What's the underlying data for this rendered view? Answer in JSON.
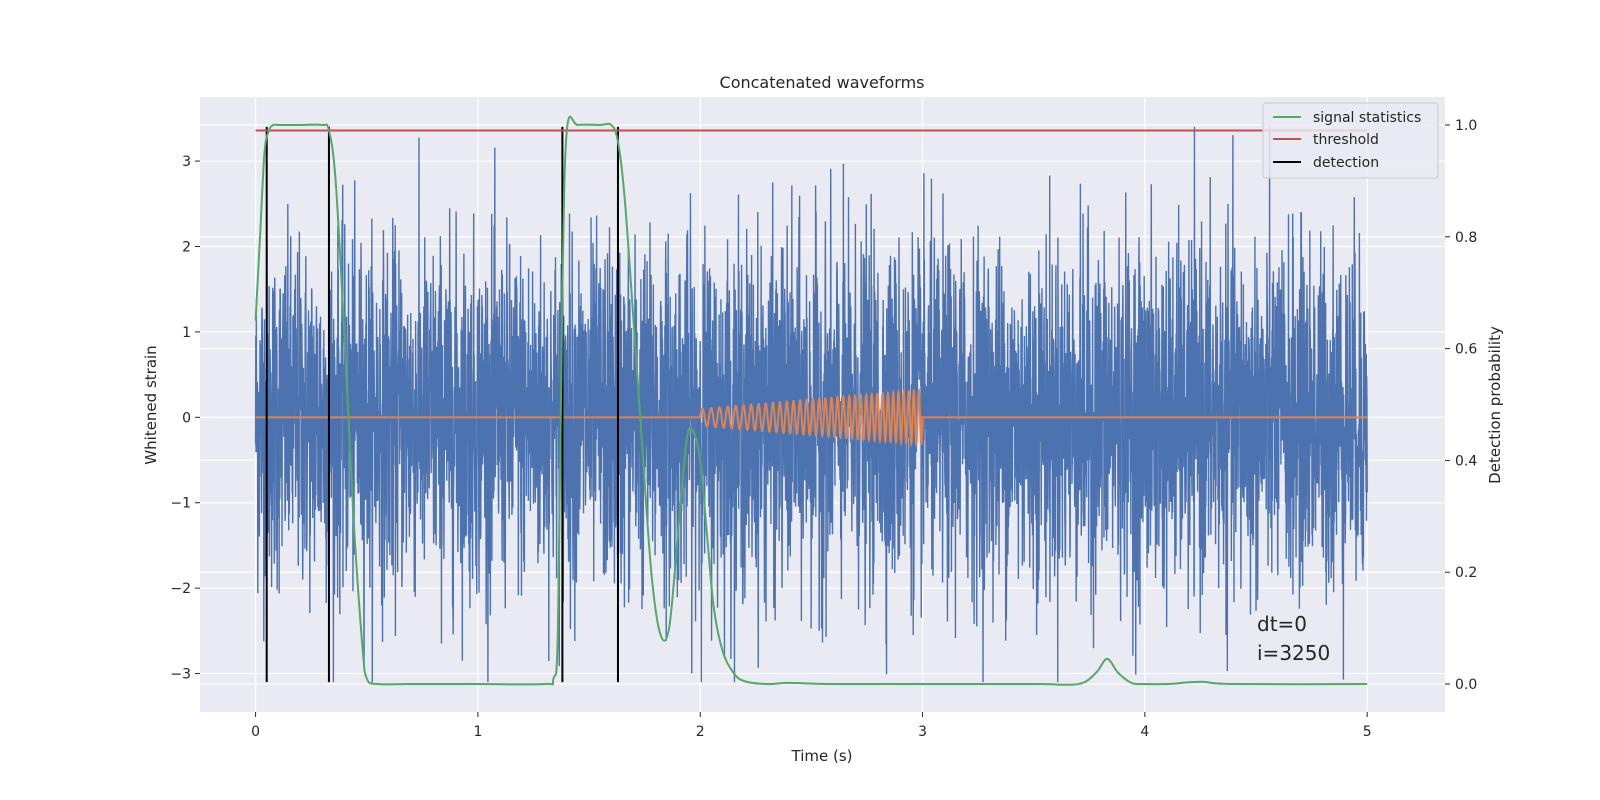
{
  "chart_data": {
    "type": "line",
    "title": "Concatenated waveforms",
    "xlabel": "Time (s)",
    "ylabel": "Whitened strain",
    "y2label": "Detection probability",
    "xlim": [
      -0.25,
      5.35
    ],
    "ylim": [
      -3.45,
      3.75
    ],
    "y2lim": [
      -0.05,
      1.05
    ],
    "x_ticks": [
      0,
      1,
      2,
      3,
      4,
      5
    ],
    "y_ticks": [
      -3,
      -2,
      -1,
      0,
      1,
      2,
      3
    ],
    "y2_ticks": [
      0.0,
      0.2,
      0.4,
      0.6,
      0.8,
      1.0
    ],
    "x_tick_labels": [
      "0",
      "1",
      "2",
      "3",
      "4",
      "5"
    ],
    "y_tick_labels": [
      "−3",
      "−2",
      "−1",
      "0",
      "1",
      "2",
      "3"
    ],
    "y2_tick_labels": [
      "0.0",
      "0.2",
      "0.4",
      "0.6",
      "0.8",
      "1.0"
    ],
    "grid": true,
    "legend_position": "top-right",
    "colors": {
      "background": "#eaeaf2",
      "strain": "#4c72b0",
      "template": "#dd8452",
      "signal_statistics": "#55a868",
      "threshold": "#c44e52",
      "detection": "#000000"
    },
    "series": [
      {
        "name": "strain",
        "axis": "left",
        "description_x_range": [
          0,
          5
        ],
        "noise_amplitude_envelope": [
          1.0,
          1.0
        ],
        "peak_max": 3.4,
        "peak_min": -3.1
      },
      {
        "name": "template",
        "axis": "left",
        "x": [
          0,
          2,
          2,
          3,
          3,
          5
        ],
        "chirp_start": 2.0,
        "chirp_end": 3.0,
        "amplitude_start": 0.1,
        "amplitude_end": 0.32,
        "cycles_start_hz": 25,
        "cycles_end_hz": 45
      },
      {
        "name": "signal statistics",
        "axis": "right",
        "x": [
          0.0,
          0.02,
          0.04,
          0.06,
          0.08,
          0.1,
          0.2,
          0.3,
          0.33,
          0.36,
          0.4,
          0.44,
          0.48,
          0.5,
          0.55,
          0.7,
          1.0,
          1.3,
          1.34,
          1.36,
          1.38,
          1.4,
          1.45,
          1.55,
          1.6,
          1.63,
          1.66,
          1.7,
          1.74,
          1.78,
          1.82,
          1.86,
          1.9,
          1.94,
          1.97,
          2.0,
          2.03,
          2.06,
          2.1,
          2.15,
          2.2,
          2.3,
          2.4,
          2.6,
          3.0,
          3.5,
          3.7,
          3.78,
          3.83,
          3.88,
          3.94,
          4.0,
          4.1,
          4.25,
          4.4,
          5.0
        ],
        "y": [
          0.65,
          0.8,
          0.95,
          0.99,
          1.0,
          1.0,
          1.0,
          1.0,
          0.99,
          0.9,
          0.62,
          0.3,
          0.07,
          0.01,
          0.0,
          0.0,
          0.0,
          0.0,
          0.01,
          0.1,
          0.7,
          0.99,
          1.0,
          1.0,
          1.0,
          0.97,
          0.87,
          0.65,
          0.42,
          0.2,
          0.09,
          0.1,
          0.27,
          0.44,
          0.45,
          0.4,
          0.27,
          0.14,
          0.06,
          0.02,
          0.005,
          0.0,
          0.002,
          0.0,
          0.0,
          0.0,
          0.0,
          0.02,
          0.045,
          0.02,
          0.002,
          0.0,
          0.0,
          0.004,
          0.0,
          0.0
        ]
      },
      {
        "name": "threshold",
        "axis": "right",
        "x": [
          0,
          5
        ],
        "y": [
          0.99,
          0.99
        ]
      },
      {
        "name": "detection",
        "axis": "left",
        "x": [
          0.05,
          0.33,
          1.38,
          1.63
        ],
        "y_range": [
          -3.1,
          3.4
        ]
      }
    ],
    "legend": [
      "signal statistics",
      "threshold",
      "detection"
    ],
    "annotations": [
      "dt=0",
      "i=3250"
    ]
  }
}
